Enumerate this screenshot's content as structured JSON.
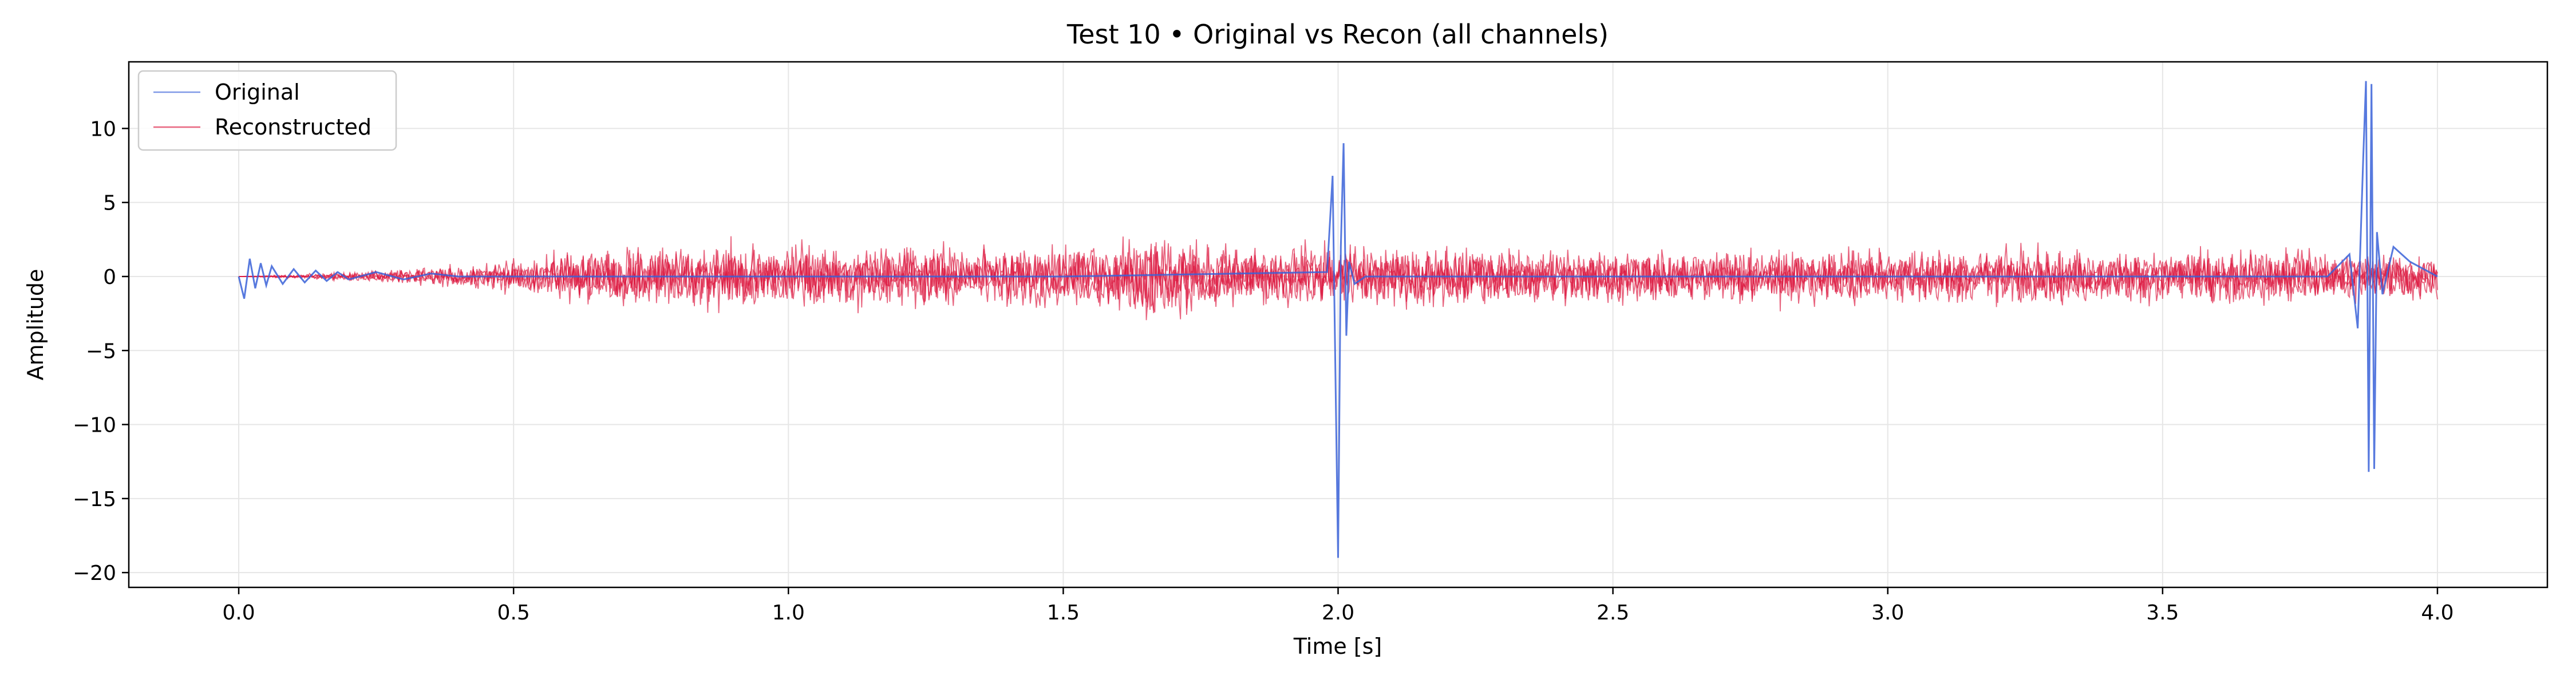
{
  "chart_data": {
    "type": "line",
    "title": "Test 10 • Original vs Recon (all channels)",
    "xlabel": "Time [s]",
    "ylabel": "Amplitude",
    "xlim": [
      -0.2,
      4.2
    ],
    "ylim": [
      -21,
      14.5
    ],
    "x_ticks": [
      0.0,
      0.5,
      1.0,
      1.5,
      2.0,
      2.5,
      3.0,
      3.5,
      4.0
    ],
    "x_tick_labels": [
      "0.0",
      "0.5",
      "1.0",
      "1.5",
      "2.0",
      "2.5",
      "3.0",
      "3.5",
      "4.0"
    ],
    "y_ticks": [
      -20,
      -15,
      -10,
      -5,
      0,
      5,
      10
    ],
    "y_tick_labels": [
      "−20",
      "−15",
      "−10",
      "−5",
      "0",
      "5",
      "10"
    ],
    "grid": true,
    "legend_position": "top-left",
    "colors": {
      "original": "#3a62d8",
      "reconstructed": "#dc143c",
      "grid": "#e6e6e6"
    },
    "series": [
      {
        "name": "Original",
        "color": "#3a62d8",
        "x": [
          0.0,
          0.01,
          0.02,
          0.03,
          0.04,
          0.05,
          0.06,
          0.08,
          0.1,
          0.12,
          0.14,
          0.16,
          0.18,
          0.2,
          0.25,
          0.3,
          0.35,
          0.4,
          1.0,
          1.5,
          1.98,
          1.99,
          2.0,
          2.005,
          2.01,
          2.015,
          2.02,
          2.03,
          2.05,
          2.5,
          3.0,
          3.5,
          3.8,
          3.84,
          3.855,
          3.865,
          3.87,
          3.875,
          3.88,
          3.885,
          3.89,
          3.9,
          3.92,
          3.95,
          4.0
        ],
        "values": [
          0.0,
          -1.5,
          1.2,
          -0.8,
          0.9,
          -0.6,
          0.7,
          -0.5,
          0.5,
          -0.4,
          0.4,
          -0.3,
          0.3,
          -0.2,
          0.3,
          -0.2,
          0.2,
          0.0,
          0.0,
          0.0,
          0.3,
          6.8,
          -19.0,
          2.0,
          9.0,
          -4.0,
          1.0,
          -0.5,
          0.0,
          0.0,
          0.0,
          0.0,
          0.0,
          1.5,
          -3.5,
          8.0,
          13.2,
          -13.2,
          13.0,
          -13.0,
          3.0,
          -1.2,
          2.0,
          1.0,
          0.0
        ]
      },
      {
        "name": "Reconstructed",
        "color": "#dc143c",
        "x": [
          0.0,
          0.2,
          0.4,
          0.6,
          0.8,
          0.9,
          1.0,
          1.2,
          1.4,
          1.6,
          1.63,
          1.8,
          2.0,
          2.2,
          2.4,
          2.6,
          2.8,
          3.0,
          3.2,
          3.4,
          3.6,
          3.8,
          4.0
        ],
        "envelope": [
          0.0,
          0.4,
          1.0,
          2.2,
          2.8,
          3.4,
          3.0,
          2.8,
          2.8,
          3.0,
          4.5,
          2.8,
          3.0,
          2.6,
          2.6,
          2.5,
          2.5,
          2.5,
          2.5,
          2.4,
          2.4,
          2.3,
          2.0
        ]
      }
    ]
  }
}
